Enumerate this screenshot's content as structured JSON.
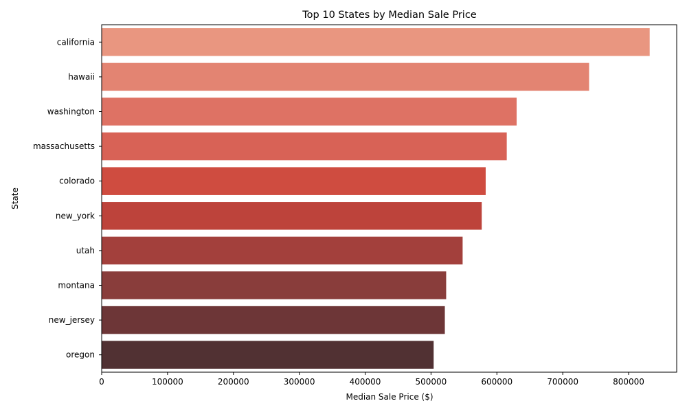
{
  "chart_data": {
    "type": "bar",
    "orientation": "horizontal",
    "title": "Top 10 States by Median Sale Price",
    "xlabel": "Median Sale Price ($)",
    "ylabel": "State",
    "xlim": [
      0,
      873000
    ],
    "xticks": [
      0,
      100000,
      200000,
      300000,
      400000,
      500000,
      600000,
      700000,
      800000
    ],
    "xtick_labels": [
      "0",
      "100000",
      "200000",
      "300000",
      "400000",
      "500000",
      "600000",
      "700000",
      "800000"
    ],
    "grid": false,
    "legend": "none",
    "categories": [
      "california",
      "hawaii",
      "washington",
      "massachusetts",
      "colorado",
      "new_york",
      "utah",
      "montana",
      "new_jersey",
      "oregon"
    ],
    "values": [
      832000,
      740000,
      630000,
      615000,
      583000,
      577000,
      548000,
      523000,
      521000,
      504000
    ],
    "colors": [
      "#e99680",
      "#e38472",
      "#de7264",
      "#d86256",
      "#cf4c40",
      "#bd433b",
      "#a3403c",
      "#893d3b",
      "#6d3637",
      "#513133"
    ]
  }
}
